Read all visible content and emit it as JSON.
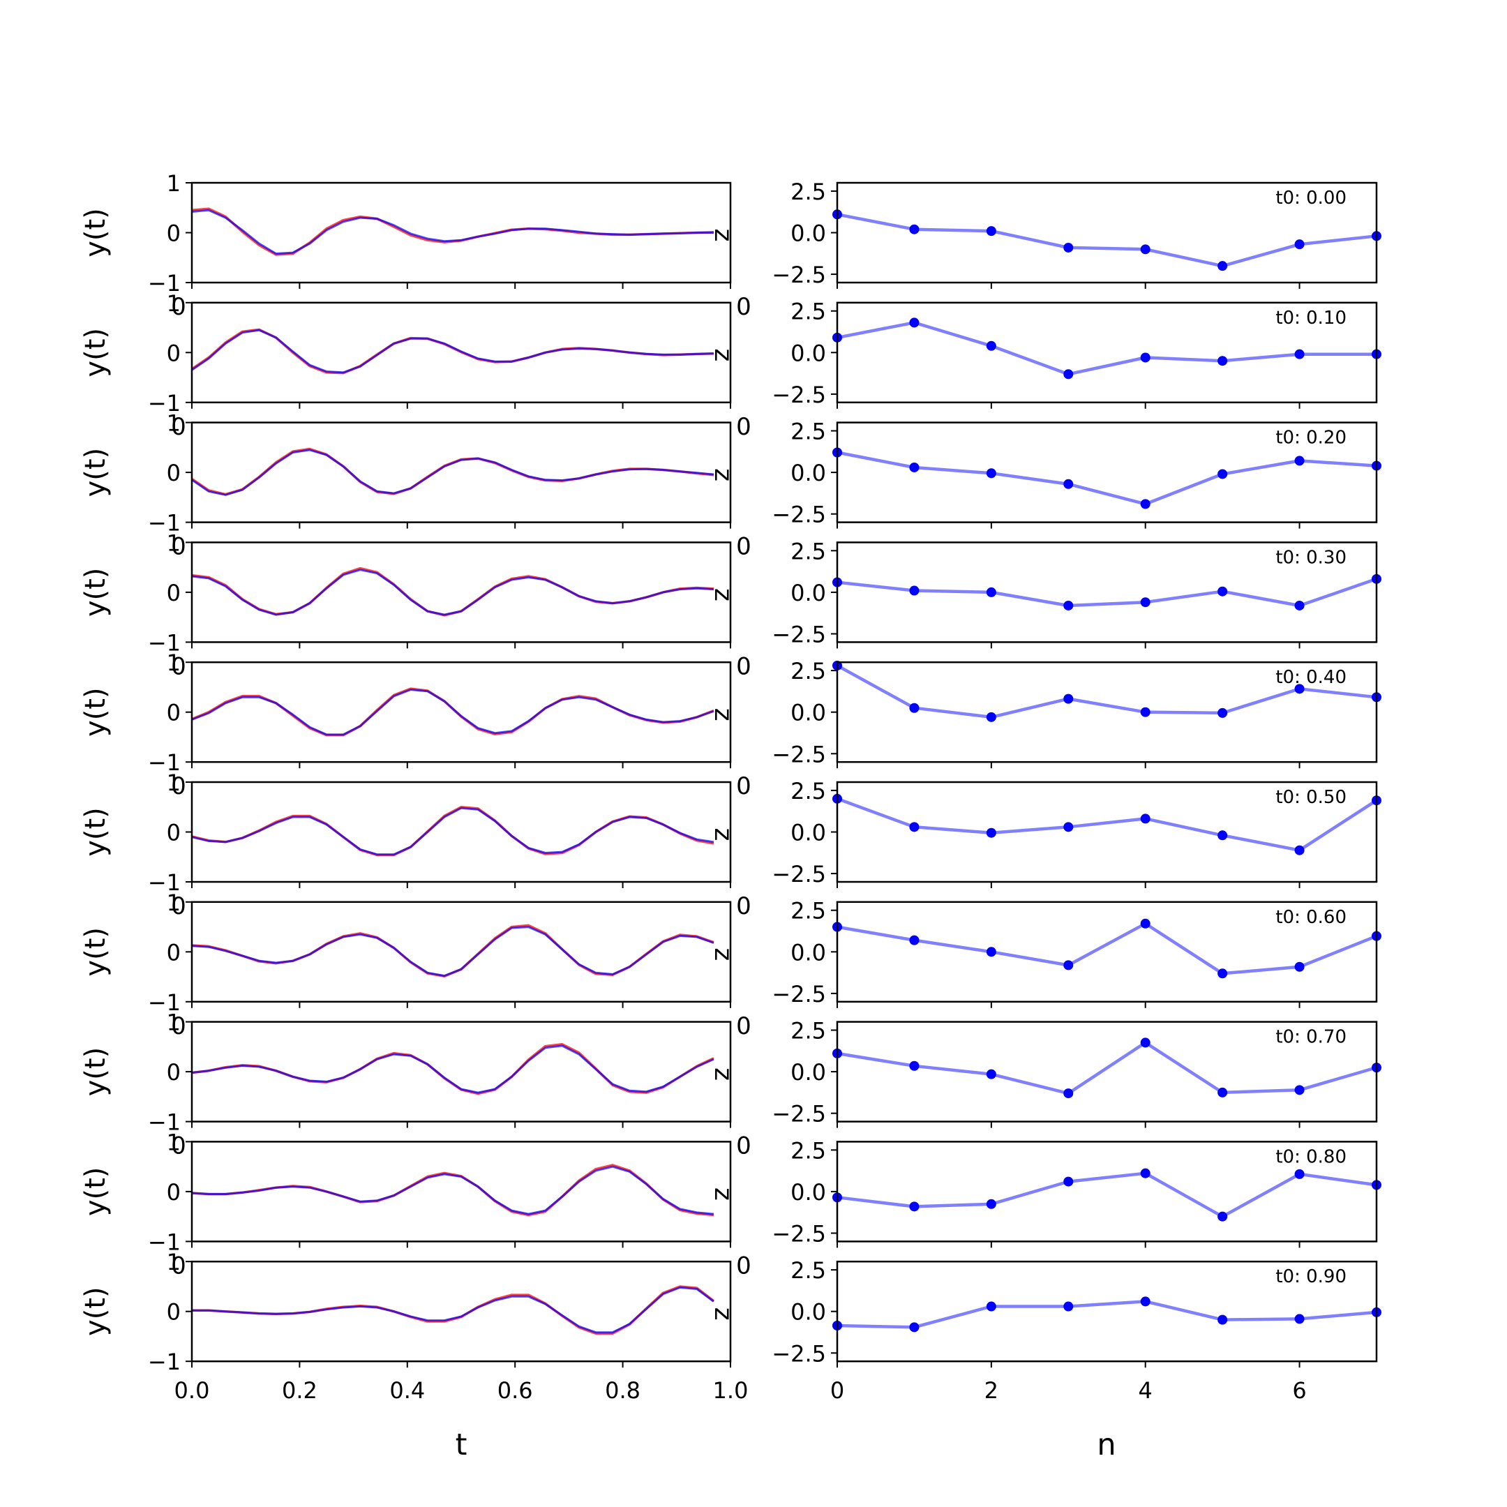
{
  "chart_data": {
    "type": "line",
    "rows": [
      {
        "t0_label": "t0: 0.00",
        "y_true": [
          0.42,
          0.45,
          0.3,
          0.05,
          -0.22,
          -0.42,
          -0.4,
          -0.22,
          0.05,
          0.22,
          0.3,
          0.28,
          0.15,
          -0.02,
          -0.12,
          -0.17,
          -0.15,
          -0.08,
          -0.02,
          0.05,
          0.08,
          0.08,
          0.05,
          0.02,
          -0.02,
          -0.03,
          -0.04,
          -0.03,
          -0.02,
          -0.01,
          0.0,
          0.0
        ],
        "y_pred": [
          0.45,
          0.48,
          0.32,
          0.02,
          -0.25,
          -0.44,
          -0.42,
          -0.2,
          0.08,
          0.25,
          0.32,
          0.28,
          0.12,
          -0.05,
          -0.15,
          -0.19,
          -0.16,
          -0.08,
          -0.01,
          0.06,
          0.08,
          0.07,
          0.04,
          0.0,
          -0.02,
          -0.04,
          -0.04,
          -0.03,
          -0.02,
          -0.01,
          0.0,
          0.01
        ],
        "n_values": [
          1.1,
          0.2,
          0.1,
          -0.9,
          -1.0,
          -2.0,
          -0.7,
          -0.2
        ]
      },
      {
        "t0_label": "t0: 0.10",
        "y_true": [
          -0.35,
          -0.12,
          0.18,
          0.4,
          0.45,
          0.3,
          0.02,
          -0.25,
          -0.38,
          -0.4,
          -0.28,
          -0.05,
          0.18,
          0.28,
          0.28,
          0.18,
          0.02,
          -0.12,
          -0.18,
          -0.18,
          -0.1,
          0.0,
          0.06,
          0.08,
          0.07,
          0.04,
          0.0,
          -0.03,
          -0.04,
          -0.04,
          -0.03,
          -0.02
        ],
        "y_pred": [
          -0.33,
          -0.1,
          0.2,
          0.42,
          0.46,
          0.3,
          0.0,
          -0.27,
          -0.4,
          -0.41,
          -0.27,
          -0.04,
          0.18,
          0.29,
          0.28,
          0.17,
          0.01,
          -0.13,
          -0.19,
          -0.18,
          -0.1,
          0.0,
          0.07,
          0.09,
          0.07,
          0.04,
          0.0,
          -0.03,
          -0.05,
          -0.04,
          -0.03,
          -0.02
        ],
        "n_values": [
          0.9,
          1.8,
          0.4,
          -1.3,
          -0.3,
          -0.5,
          -0.1,
          -0.1
        ]
      },
      {
        "t0_label": "t0: 0.20",
        "y_true": [
          -0.15,
          -0.38,
          -0.45,
          -0.35,
          -0.1,
          0.18,
          0.4,
          0.45,
          0.35,
          0.12,
          -0.18,
          -0.38,
          -0.42,
          -0.32,
          -0.1,
          0.12,
          0.25,
          0.28,
          0.2,
          0.05,
          -0.08,
          -0.15,
          -0.16,
          -0.12,
          -0.04,
          0.02,
          0.06,
          0.07,
          0.05,
          0.02,
          -0.01,
          -0.04
        ],
        "y_pred": [
          -0.13,
          -0.36,
          -0.44,
          -0.34,
          -0.09,
          0.2,
          0.42,
          0.47,
          0.36,
          0.12,
          -0.19,
          -0.39,
          -0.43,
          -0.32,
          -0.09,
          0.13,
          0.26,
          0.28,
          0.19,
          0.04,
          -0.09,
          -0.16,
          -0.17,
          -0.12,
          -0.04,
          0.03,
          0.07,
          0.07,
          0.05,
          0.02,
          -0.02,
          -0.05
        ],
        "n_values": [
          1.2,
          0.3,
          -0.05,
          -0.7,
          -1.9,
          -0.1,
          0.7,
          0.4
        ]
      },
      {
        "t0_label": "t0: 0.30",
        "y_true": [
          0.32,
          0.28,
          0.12,
          -0.15,
          -0.35,
          -0.45,
          -0.4,
          -0.22,
          0.08,
          0.35,
          0.45,
          0.38,
          0.15,
          -0.15,
          -0.38,
          -0.45,
          -0.38,
          -0.15,
          0.1,
          0.25,
          0.3,
          0.25,
          0.1,
          -0.08,
          -0.18,
          -0.22,
          -0.18,
          -0.1,
          0.0,
          0.06,
          0.08,
          0.06
        ],
        "y_pred": [
          0.34,
          0.3,
          0.14,
          -0.14,
          -0.34,
          -0.44,
          -0.4,
          -0.22,
          0.09,
          0.37,
          0.48,
          0.4,
          0.16,
          -0.14,
          -0.38,
          -0.46,
          -0.38,
          -0.14,
          0.11,
          0.27,
          0.32,
          0.26,
          0.1,
          -0.08,
          -0.19,
          -0.22,
          -0.18,
          -0.1,
          0.0,
          0.07,
          0.09,
          0.07
        ],
        "n_values": [
          0.6,
          0.1,
          0.0,
          -0.8,
          -0.6,
          0.05,
          -0.8,
          0.8
        ]
      },
      {
        "t0_label": "t0: 0.40",
        "y_true": [
          -0.15,
          -0.02,
          0.18,
          0.3,
          0.3,
          0.18,
          -0.05,
          -0.3,
          -0.45,
          -0.45,
          -0.28,
          0.02,
          0.32,
          0.45,
          0.42,
          0.22,
          -0.08,
          -0.32,
          -0.42,
          -0.38,
          -0.18,
          0.08,
          0.25,
          0.3,
          0.25,
          0.1,
          -0.05,
          -0.15,
          -0.2,
          -0.18,
          -0.1,
          0.02
        ],
        "y_pred": [
          -0.14,
          0.0,
          0.2,
          0.32,
          0.32,
          0.18,
          -0.07,
          -0.32,
          -0.46,
          -0.46,
          -0.28,
          0.04,
          0.34,
          0.47,
          0.43,
          0.22,
          -0.09,
          -0.34,
          -0.44,
          -0.4,
          -0.19,
          0.08,
          0.26,
          0.32,
          0.27,
          0.1,
          -0.06,
          -0.16,
          -0.21,
          -0.19,
          -0.1,
          0.03
        ],
        "n_values": [
          2.8,
          0.25,
          -0.3,
          0.8,
          0.0,
          -0.05,
          1.4,
          0.9
        ]
      },
      {
        "t0_label": "t0: 0.50",
        "y_true": [
          -0.1,
          -0.18,
          -0.2,
          -0.12,
          0.02,
          0.18,
          0.3,
          0.3,
          0.15,
          -0.1,
          -0.35,
          -0.45,
          -0.45,
          -0.3,
          0.0,
          0.3,
          0.48,
          0.45,
          0.22,
          -0.08,
          -0.32,
          -0.42,
          -0.4,
          -0.25,
          0.0,
          0.2,
          0.3,
          0.28,
          0.15,
          -0.02,
          -0.15,
          -0.2
        ],
        "y_pred": [
          -0.09,
          -0.17,
          -0.2,
          -0.12,
          0.03,
          0.2,
          0.32,
          0.32,
          0.16,
          -0.1,
          -0.36,
          -0.46,
          -0.46,
          -0.3,
          0.01,
          0.32,
          0.5,
          0.47,
          0.23,
          -0.08,
          -0.33,
          -0.44,
          -0.42,
          -0.26,
          0.0,
          0.21,
          0.31,
          0.29,
          0.15,
          -0.03,
          -0.17,
          -0.23
        ],
        "n_values": [
          2.0,
          0.3,
          -0.05,
          0.3,
          0.8,
          -0.2,
          -1.1,
          1.9
        ]
      },
      {
        "t0_label": "t0: 0.60",
        "y_true": [
          0.12,
          0.1,
          0.02,
          -0.08,
          -0.18,
          -0.22,
          -0.18,
          -0.05,
          0.15,
          0.3,
          0.35,
          0.28,
          0.08,
          -0.2,
          -0.42,
          -0.48,
          -0.35,
          -0.05,
          0.25,
          0.48,
          0.5,
          0.35,
          0.05,
          -0.25,
          -0.42,
          -0.45,
          -0.3,
          -0.05,
          0.2,
          0.32,
          0.3,
          0.18
        ],
        "y_pred": [
          0.13,
          0.11,
          0.03,
          -0.08,
          -0.19,
          -0.23,
          -0.18,
          -0.05,
          0.16,
          0.31,
          0.37,
          0.29,
          0.08,
          -0.21,
          -0.43,
          -0.49,
          -0.35,
          -0.04,
          0.27,
          0.5,
          0.53,
          0.37,
          0.05,
          -0.26,
          -0.44,
          -0.46,
          -0.3,
          -0.04,
          0.21,
          0.34,
          0.31,
          0.19
        ],
        "n_values": [
          1.5,
          0.7,
          0.0,
          -0.8,
          1.7,
          -1.3,
          -0.9,
          0.95
        ]
      },
      {
        "t0_label": "t0: 0.70",
        "y_true": [
          -0.02,
          0.02,
          0.08,
          0.12,
          0.1,
          0.02,
          -0.1,
          -0.18,
          -0.2,
          -0.12,
          0.05,
          0.25,
          0.35,
          0.32,
          0.15,
          -0.12,
          -0.35,
          -0.42,
          -0.35,
          -0.1,
          0.22,
          0.48,
          0.52,
          0.35,
          0.05,
          -0.25,
          -0.38,
          -0.4,
          -0.3,
          -0.1,
          0.1,
          0.25
        ],
        "y_pred": [
          -0.02,
          0.02,
          0.09,
          0.13,
          0.11,
          0.02,
          -0.1,
          -0.19,
          -0.21,
          -0.12,
          0.05,
          0.26,
          0.37,
          0.33,
          0.15,
          -0.13,
          -0.36,
          -0.44,
          -0.36,
          -0.1,
          0.24,
          0.51,
          0.55,
          0.38,
          0.06,
          -0.27,
          -0.4,
          -0.42,
          -0.31,
          -0.1,
          0.11,
          0.27
        ],
        "n_values": [
          1.1,
          0.35,
          -0.15,
          -1.3,
          1.75,
          -1.25,
          -1.1,
          0.25
        ]
      },
      {
        "t0_label": "t0: 0.80",
        "y_true": [
          -0.03,
          -0.05,
          -0.05,
          -0.02,
          0.02,
          0.08,
          0.1,
          0.08,
          0.0,
          -0.1,
          -0.2,
          -0.18,
          -0.08,
          0.1,
          0.28,
          0.35,
          0.3,
          0.1,
          -0.18,
          -0.38,
          -0.45,
          -0.38,
          -0.1,
          0.2,
          0.42,
          0.5,
          0.4,
          0.15,
          -0.15,
          -0.35,
          -0.42,
          -0.45
        ],
        "y_pred": [
          -0.03,
          -0.05,
          -0.05,
          -0.02,
          0.03,
          0.08,
          0.11,
          0.09,
          0.0,
          -0.1,
          -0.21,
          -0.19,
          -0.08,
          0.11,
          0.3,
          0.37,
          0.31,
          0.1,
          -0.19,
          -0.4,
          -0.47,
          -0.4,
          -0.1,
          0.22,
          0.45,
          0.53,
          0.42,
          0.16,
          -0.16,
          -0.37,
          -0.44,
          -0.47
        ],
        "n_values": [
          -0.35,
          -0.9,
          -0.75,
          0.6,
          1.1,
          -1.5,
          1.05,
          0.4
        ]
      },
      {
        "t0_label": "t0: 0.90",
        "y_true": [
          0.02,
          0.02,
          0.0,
          -0.02,
          -0.04,
          -0.05,
          -0.04,
          -0.01,
          0.04,
          0.08,
          0.1,
          0.08,
          0.0,
          -0.1,
          -0.18,
          -0.18,
          -0.1,
          0.08,
          0.22,
          0.3,
          0.3,
          0.15,
          -0.08,
          -0.3,
          -0.42,
          -0.42,
          -0.25,
          0.05,
          0.35,
          0.48,
          0.45,
          0.2
        ],
        "y_pred": [
          0.02,
          0.02,
          0.0,
          -0.02,
          -0.04,
          -0.05,
          -0.04,
          -0.01,
          0.05,
          0.09,
          0.11,
          0.09,
          0.0,
          -0.11,
          -0.2,
          -0.2,
          -0.11,
          0.09,
          0.24,
          0.33,
          0.33,
          0.16,
          -0.09,
          -0.32,
          -0.44,
          -0.44,
          -0.26,
          0.06,
          0.37,
          0.5,
          0.47,
          0.21
        ],
        "n_values": [
          -0.85,
          -0.95,
          0.3,
          0.3,
          0.6,
          -0.5,
          -0.45,
          -0.05
        ]
      }
    ],
    "left_panels": {
      "ylabel": "y(t)",
      "xlabel": "t",
      "ylim": [
        -1,
        1
      ],
      "xlim": [
        0,
        1
      ],
      "yticks": [
        "1",
        "0",
        "−1"
      ],
      "xticks": [
        "0.0",
        "0.2",
        "0.4",
        "0.6",
        "0.8",
        "1.0"
      ],
      "true_color": "#0000ff",
      "pred_color": "#ff0000",
      "overlay_label": "z",
      "stray_tick_label": "0"
    },
    "right_panels": {
      "xlabel": "n",
      "ylim": [
        -3,
        3
      ],
      "xlim": [
        0,
        7
      ],
      "yticks": [
        "2.5",
        "0.0",
        "−2.5"
      ],
      "xticks": [
        "0",
        "2",
        "4",
        "6"
      ],
      "line_color": "#8080ff",
      "marker_color": "#0000ff",
      "stray_tick_label": "0"
    }
  }
}
